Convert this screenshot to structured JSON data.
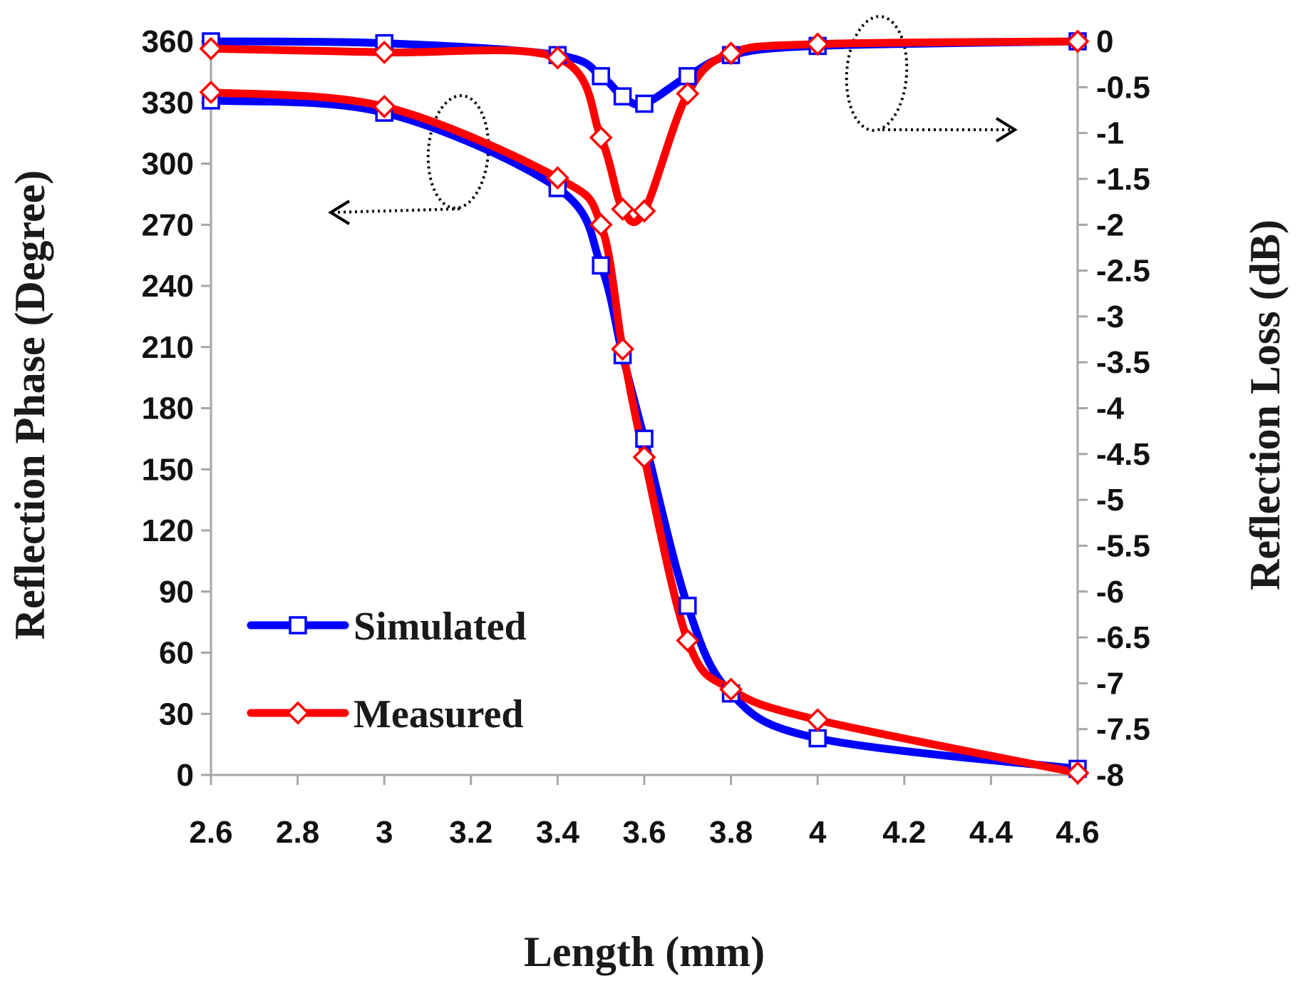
{
  "chart_data": {
    "type": "line",
    "xlabel": "Length (mm)",
    "ylabel_left": "Reflection Phase (Degree)",
    "ylabel_right": "Reflection Loss (dB)",
    "xlim": [
      2.6,
      4.6
    ],
    "x_ticks": [
      "2.6",
      "2.8",
      "3",
      "3.2",
      "3.4",
      "3.6",
      "3.8",
      "4",
      "4.2",
      "4.4",
      "4.6"
    ],
    "ylim_left": [
      0,
      360
    ],
    "y_ticks_left": [
      "0",
      "30",
      "60",
      "90",
      "120",
      "150",
      "180",
      "210",
      "240",
      "270",
      "300",
      "330",
      "360"
    ],
    "ylim_right": [
      -8,
      0
    ],
    "y_ticks_right": [
      "0",
      "-0.5",
      "-1",
      "-1.5",
      "-2",
      "-2.5",
      "-3",
      "-3.5",
      "-4",
      "-4.5",
      "-5",
      "-5.5",
      "-6",
      "-6.5",
      "-7",
      "-7.5",
      "-8"
    ],
    "grid": false,
    "legend_position": "bottom-left",
    "series": [
      {
        "name": "Simulated",
        "axis": "left",
        "quantity": "phase",
        "color": "#0000ff",
        "marker": "square",
        "x": [
          2.6,
          3.0,
          3.4,
          3.5,
          3.55,
          3.6,
          3.7,
          3.8,
          4.0,
          4.6
        ],
        "y": [
          331,
          325,
          288,
          250,
          206,
          165,
          83,
          40,
          18,
          3
        ]
      },
      {
        "name": "Measured",
        "axis": "left",
        "quantity": "phase",
        "color": "#ff0000",
        "marker": "diamond",
        "x": [
          2.6,
          3.0,
          3.4,
          3.5,
          3.55,
          3.6,
          3.7,
          3.8,
          4.0,
          4.6
        ],
        "y": [
          335,
          328,
          293,
          270,
          209,
          156,
          66,
          42,
          27,
          1
        ]
      },
      {
        "name": "Simulated",
        "axis": "right",
        "quantity": "loss",
        "color": "#0000ff",
        "marker": "square",
        "x": [
          2.6,
          3.0,
          3.4,
          3.5,
          3.55,
          3.6,
          3.7,
          3.8,
          4.0,
          4.6
        ],
        "y": [
          0.0,
          -0.02,
          -0.15,
          -0.38,
          -0.6,
          -0.68,
          -0.38,
          -0.15,
          -0.05,
          0.0
        ]
      },
      {
        "name": "Measured",
        "axis": "right",
        "quantity": "loss",
        "color": "#ff0000",
        "marker": "diamond",
        "x": [
          2.6,
          3.0,
          3.4,
          3.5,
          3.55,
          3.6,
          3.7,
          3.8,
          4.0,
          4.6
        ],
        "y": [
          -0.08,
          -0.12,
          -0.18,
          -1.05,
          -1.83,
          -1.85,
          -0.57,
          -0.13,
          -0.03,
          0.0
        ]
      }
    ]
  }
}
